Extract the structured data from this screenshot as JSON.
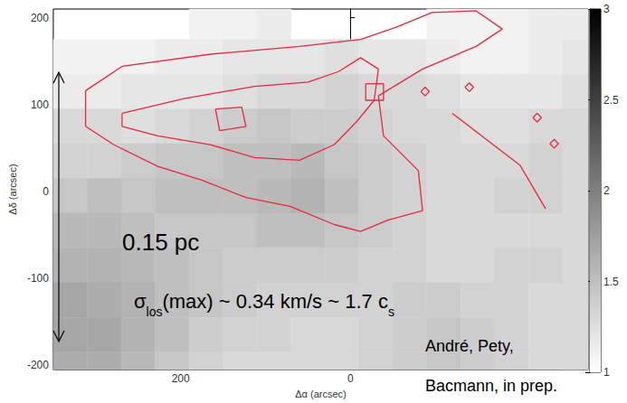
{
  "chart_data": {
    "type": "heatmap",
    "x_label": "Δα (arcsec)",
    "y_label": "Δδ (arcsec)",
    "xlim": [
      350,
      -280
    ],
    "ylim": [
      -205,
      210
    ],
    "xticks": [
      200,
      0
    ],
    "yticks": [
      -200,
      -100,
      0,
      100,
      200
    ],
    "x": [
      330,
      290,
      250,
      210,
      170,
      130,
      90,
      50,
      10,
      -30,
      -70,
      -110,
      -150,
      -190,
      -230,
      -270
    ],
    "y": [
      195,
      155,
      115,
      75,
      35,
      -5,
      -45,
      -85,
      -125,
      -165,
      -205
    ],
    "values": [
      [
        null,
        null,
        null,
        null,
        1.1,
        1.1,
        1.15,
        null,
        null,
        null,
        null,
        1.1,
        1.1,
        1.1,
        1.15,
        1.15
      ],
      [
        1.1,
        1.1,
        1.1,
        1.15,
        1.15,
        1.2,
        1.2,
        1.2,
        1.25,
        1.2,
        1.2,
        1.15,
        1.1,
        1.1,
        1.15,
        1.2
      ],
      [
        1.15,
        1.15,
        1.2,
        1.2,
        1.2,
        1.25,
        1.3,
        1.3,
        1.35,
        1.3,
        1.3,
        1.25,
        1.2,
        1.2,
        1.2,
        1.25
      ],
      [
        1.3,
        1.3,
        1.25,
        1.3,
        1.35,
        1.4,
        1.45,
        1.4,
        1.4,
        1.35,
        1.3,
        1.3,
        1.25,
        1.25,
        1.3,
        1.3
      ],
      [
        1.35,
        1.35,
        1.4,
        1.45,
        1.45,
        1.5,
        1.5,
        1.55,
        1.45,
        1.4,
        1.35,
        1.3,
        1.3,
        1.3,
        1.35,
        1.3
      ],
      [
        1.45,
        1.5,
        1.45,
        1.5,
        1.5,
        1.5,
        1.55,
        1.6,
        1.5,
        1.4,
        1.35,
        1.3,
        1.3,
        1.35,
        1.35,
        1.3
      ],
      [
        1.55,
        1.55,
        1.5,
        1.45,
        1.45,
        1.45,
        1.5,
        1.5,
        1.45,
        1.4,
        1.35,
        1.3,
        1.3,
        1.3,
        1.3,
        1.3
      ],
      [
        1.6,
        1.6,
        1.55,
        1.5,
        1.45,
        1.4,
        1.4,
        1.4,
        1.4,
        1.35,
        1.35,
        1.3,
        1.3,
        1.35,
        1.35,
        1.3
      ],
      [
        1.7,
        1.65,
        1.6,
        1.5,
        1.45,
        1.4,
        1.35,
        1.35,
        1.35,
        1.35,
        1.4,
        1.4,
        1.35,
        1.35,
        1.3,
        1.3
      ],
      [
        1.7,
        1.7,
        1.6,
        1.5,
        1.4,
        1.35,
        1.35,
        1.3,
        1.3,
        1.35,
        1.4,
        1.45,
        1.4,
        1.35,
        1.3,
        1.3
      ],
      [
        1.65,
        1.65,
        1.55,
        1.45,
        1.35,
        1.3,
        1.3,
        1.3,
        1.3,
        1.35,
        1.4,
        1.45,
        1.4,
        1.35,
        1.3,
        1.3
      ]
    ],
    "colorbar": {
      "range": [
        1,
        3
      ],
      "ticks": [
        1,
        1.5,
        2,
        2.5,
        3
      ]
    },
    "contours": {
      "color": "#e8283c",
      "paths": [
        [
          [
            312,
            116
          ],
          [
            269,
            144
          ],
          [
            165,
            158
          ],
          [
            60,
            167
          ],
          [
            -12,
            175
          ],
          [
            -54,
            189
          ],
          [
            -96,
            206
          ],
          [
            -148,
            208
          ],
          [
            -179,
            187
          ],
          [
            -148,
            167
          ],
          [
            -85,
            141
          ],
          [
            -33,
            110
          ],
          [
            -39,
            64
          ],
          [
            -80,
            24
          ],
          [
            -85,
            -22
          ],
          [
            -44,
            -33
          ],
          [
            -12,
            -46
          ],
          [
            19,
            -38
          ],
          [
            71,
            -17
          ],
          [
            123,
            -7
          ],
          [
            175,
            13
          ],
          [
            227,
            29
          ],
          [
            279,
            54
          ],
          [
            312,
            75
          ],
          [
            312,
            116
          ]
        ],
        [
          [
            269,
            90
          ],
          [
            196,
            107
          ],
          [
            113,
            121
          ],
          [
            50,
            126
          ],
          [
            14,
            138
          ],
          [
            -12,
            154
          ],
          [
            -33,
            141
          ],
          [
            -28,
            105
          ],
          [
            -7,
            80
          ],
          [
            19,
            54
          ],
          [
            60,
            36
          ],
          [
            113,
            39
          ],
          [
            165,
            54
          ],
          [
            227,
            64
          ],
          [
            269,
            75
          ],
          [
            269,
            90
          ]
        ],
        [
          [
            159,
            95
          ],
          [
            128,
            97
          ],
          [
            123,
            75
          ],
          [
            154,
            70
          ],
          [
            159,
            95
          ]
        ],
        [
          [
            -18,
            124
          ],
          [
            -39,
            124
          ],
          [
            -39,
            105
          ],
          [
            -18,
            105
          ],
          [
            -18,
            124
          ]
        ],
        [
          [
            -120,
            90
          ],
          [
            -160,
            60
          ],
          [
            -200,
            30
          ],
          [
            -230,
            -20
          ]
        ],
        [
          [
            -83,
            115
          ],
          [
            -88,
            120
          ],
          [
            -93,
            115
          ],
          [
            -88,
            110
          ],
          [
            -83,
            115
          ]
        ],
        [
          [
            -135,
            120
          ],
          [
            -140,
            125
          ],
          [
            -145,
            120
          ],
          [
            -140,
            115
          ],
          [
            -135,
            120
          ]
        ],
        [
          [
            -215,
            85
          ],
          [
            -220,
            90
          ],
          [
            -225,
            85
          ],
          [
            -220,
            80
          ],
          [
            -215,
            85
          ]
        ],
        [
          [
            -235,
            55
          ],
          [
            -240,
            60
          ],
          [
            -245,
            55
          ],
          [
            -240,
            50
          ],
          [
            -235,
            55
          ]
        ]
      ]
    },
    "annotations": {
      "scale_bar": "0.15 pc",
      "dispersion": [
        {
          "text": "σ"
        },
        {
          "text": "los",
          "sub": true
        },
        {
          "text": "(max) ~ 0.34 km/s ~ 1.7 c"
        },
        {
          "text": "s",
          "sub": true
        }
      ],
      "credit": [
        "André, Pety,",
        "Bacmann, in prep."
      ]
    }
  }
}
